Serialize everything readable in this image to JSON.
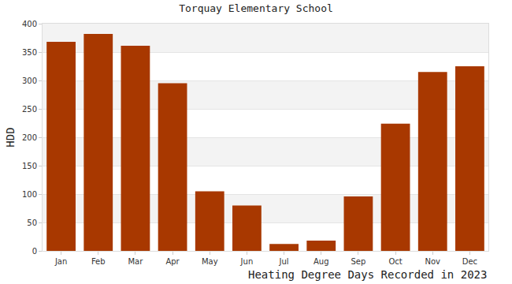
{
  "chart_data": {
    "type": "bar",
    "title": "Torquay Elementary School",
    "xlabel": "Heating Degree Days Recorded in 2023",
    "ylabel": "HDD",
    "categories": [
      "Jan",
      "Feb",
      "Mar",
      "Apr",
      "May",
      "Jun",
      "Jul",
      "Aug",
      "Sep",
      "Oct",
      "Nov",
      "Dec"
    ],
    "values": [
      368,
      382,
      361,
      295,
      105,
      80,
      12,
      18,
      96,
      224,
      315,
      325
    ],
    "color": "#a83800",
    "ylim": [
      0,
      400
    ],
    "yticks": [
      0,
      50,
      100,
      150,
      200,
      250,
      300,
      350,
      400
    ],
    "grid": true
  }
}
